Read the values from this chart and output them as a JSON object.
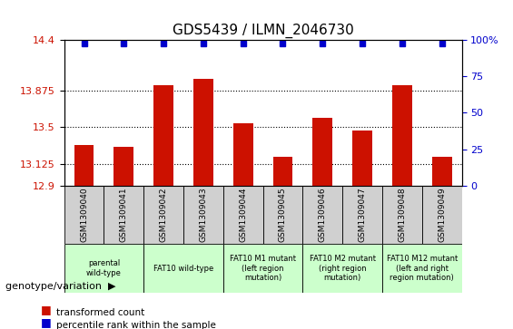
{
  "title": "GDS5439 / ILMN_2046730",
  "samples": [
    "GSM1309040",
    "GSM1309041",
    "GSM1309042",
    "GSM1309043",
    "GSM1309044",
    "GSM1309045",
    "GSM1309046",
    "GSM1309047",
    "GSM1309048",
    "GSM1309049"
  ],
  "red_values": [
    13.32,
    13.3,
    13.93,
    14.0,
    13.54,
    13.2,
    13.6,
    13.47,
    13.93,
    13.2
  ],
  "blue_values": [
    100,
    100,
    100,
    100,
    100,
    100,
    100,
    100,
    100,
    100
  ],
  "blue_visible": [
    true,
    false,
    true,
    false,
    true,
    false,
    true,
    false,
    true,
    false
  ],
  "ylim_left": [
    12.9,
    14.4
  ],
  "ylim_right": [
    0,
    100
  ],
  "yticks_left": [
    12.9,
    13.125,
    13.5,
    13.875,
    14.4
  ],
  "yticks_right": [
    0,
    25,
    50,
    75,
    100
  ],
  "ytick_labels_left": [
    "12.9",
    "13.125",
    "13.5",
    "13.875",
    "14.4"
  ],
  "ytick_labels_right": [
    "0",
    "25",
    "50",
    "75",
    "100%"
  ],
  "grid_values": [
    13.125,
    13.5,
    13.875
  ],
  "bar_color": "#cc1100",
  "dot_color": "#0000cc",
  "groups": [
    {
      "label": "parental\nwild-type",
      "start": 0,
      "end": 2,
      "color": "#ccffcc"
    },
    {
      "label": "FAT10 wild-type",
      "start": 2,
      "end": 4,
      "color": "#ccffcc"
    },
    {
      "label": "FAT10 M1 mutant\n(left region\nmutation)",
      "start": 4,
      "end": 6,
      "color": "#ccffcc"
    },
    {
      "label": "FAT10 M2 mutant\n(right region\nmutation)",
      "start": 6,
      "end": 8,
      "color": "#ccffcc"
    },
    {
      "label": "FAT10 M12 mutant\n(left and right\nregion mutation)",
      "start": 8,
      "end": 10,
      "color": "#ccffcc"
    }
  ],
  "legend_red_label": "transformed count",
  "legend_blue_label": "percentile rank within the sample",
  "genotype_label": "genotype/variation"
}
